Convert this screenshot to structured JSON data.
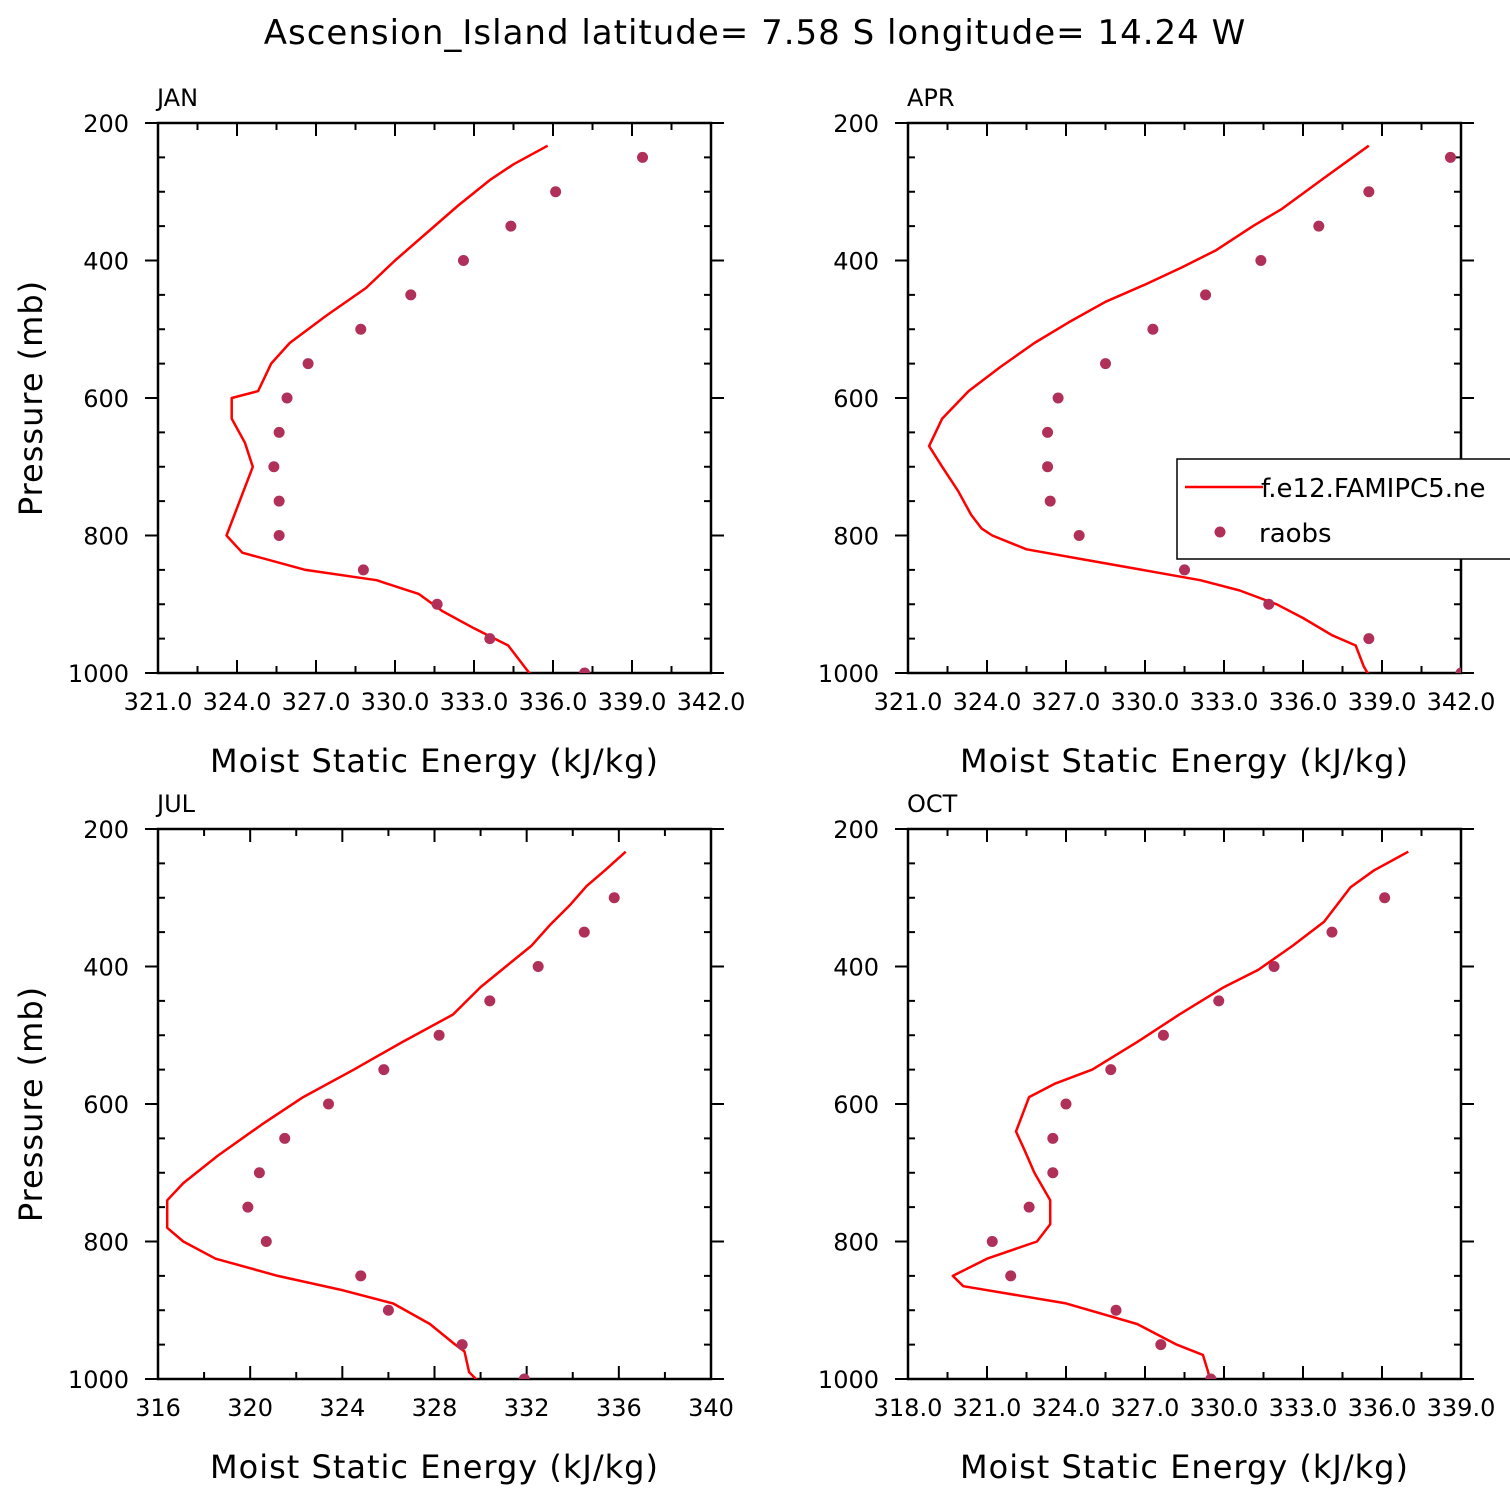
{
  "title": "Ascension_Island  latitude= 7.58 S longitude= 14.24 W",
  "colors": {
    "model": "#ff0000",
    "obs": "#b0305a"
  },
  "legend": {
    "model_label": "f.e12.FAMIPC5.ne",
    "obs_label": "raobs",
    "panel": "APR"
  },
  "chart_data": [
    {
      "type": "line",
      "panel": "JAN",
      "xlabel": "Moist Static Energy (kJ/kg)",
      "ylabel": "Pressure (mb)",
      "xlim": [
        321,
        342
      ],
      "xticks": [
        321,
        324,
        327,
        330,
        333,
        336,
        339,
        342
      ],
      "xtick_labels": [
        "321.0",
        "324.0",
        "327.0",
        "330.0",
        "333.0",
        "336.0",
        "339.0",
        "342.0"
      ],
      "ylim": [
        1000,
        200
      ],
      "yticks": [
        200,
        400,
        600,
        800,
        1000
      ],
      "ytick_labels": [
        "200",
        "400",
        "600",
        "800",
        "1000"
      ],
      "series": [
        {
          "name": "f.e12.FAMIPC5.ne",
          "kind": "line",
          "x": [
            335.8,
            334.5,
            333.6,
            332.4,
            331.2,
            330.0,
            328.9,
            327.4,
            326.0,
            325.3,
            324.8,
            323.8,
            323.8,
            324.3,
            324.6,
            323.6,
            324.2,
            326.6,
            329.3,
            330.9,
            331.8,
            333.0,
            334.3,
            334.9,
            335.1,
            335.4
          ],
          "y": [
            233,
            260,
            283,
            320,
            360,
            400,
            440,
            480,
            520,
            550,
            590,
            600,
            630,
            665,
            700,
            800,
            825,
            850,
            865,
            885,
            910,
            935,
            960,
            990,
            1000,
            1010
          ]
        },
        {
          "name": "raobs",
          "kind": "scatter",
          "x": [
            339.4,
            336.1,
            334.4,
            332.6,
            330.6,
            328.7,
            326.7,
            325.9,
            325.6,
            325.4,
            325.6,
            325.6,
            328.8,
            331.6,
            333.6,
            337.2
          ],
          "y": [
            250,
            300,
            350,
            400,
            450,
            500,
            550,
            600,
            650,
            700,
            750,
            800,
            850,
            900,
            950,
            1000
          ]
        }
      ]
    },
    {
      "type": "line",
      "panel": "APR",
      "xlabel": "Moist Static Energy (kJ/kg)",
      "ylabel": "",
      "xlim": [
        321,
        342
      ],
      "xticks": [
        321,
        324,
        327,
        330,
        333,
        336,
        339,
        342
      ],
      "xtick_labels": [
        "321.0",
        "324.0",
        "327.0",
        "330.0",
        "333.0",
        "336.0",
        "339.0",
        "342.0"
      ],
      "ylim": [
        1000,
        200
      ],
      "yticks": [
        200,
        400,
        600,
        800,
        1000
      ],
      "ytick_labels": [
        "200",
        "400",
        "600",
        "800",
        "1000"
      ],
      "series": [
        {
          "name": "f.e12.FAMIPC5.ne",
          "kind": "line",
          "x": [
            338.5,
            336.8,
            335.2,
            334.1,
            332.7,
            331.4,
            330.0,
            328.5,
            327.1,
            325.8,
            324.5,
            323.3,
            322.3,
            321.8,
            322.3,
            322.9,
            323.4,
            323.8,
            324.2,
            325.5,
            327.7,
            329.9,
            332.1,
            333.6,
            335.0,
            336.0,
            337.1,
            338.0,
            338.3,
            338.6
          ],
          "y": [
            233,
            280,
            325,
            350,
            385,
            410,
            435,
            460,
            490,
            520,
            555,
            590,
            630,
            670,
            700,
            735,
            770,
            790,
            800,
            820,
            835,
            850,
            865,
            880,
            900,
            920,
            945,
            960,
            990,
            1010
          ]
        },
        {
          "name": "raobs",
          "kind": "scatter",
          "x": [
            341.6,
            338.5,
            336.6,
            334.4,
            332.3,
            330.3,
            328.5,
            326.7,
            326.3,
            326.3,
            326.4,
            327.5,
            331.5,
            334.7,
            338.5,
            342.0
          ],
          "y": [
            250,
            300,
            350,
            400,
            450,
            500,
            550,
            600,
            650,
            700,
            750,
            800,
            850,
            900,
            950,
            1000
          ]
        }
      ]
    },
    {
      "type": "line",
      "panel": "JUL",
      "xlabel": "Moist Static Energy (kJ/kg)",
      "ylabel": "Pressure (mb)",
      "xlim": [
        316,
        340
      ],
      "xticks": [
        316,
        320,
        324,
        328,
        332,
        336,
        340
      ],
      "xtick_labels": [
        "316",
        "320",
        "324",
        "328",
        "332",
        "336",
        "340"
      ],
      "ylim": [
        1000,
        200
      ],
      "yticks": [
        200,
        400,
        600,
        800,
        1000
      ],
      "ytick_labels": [
        "200",
        "400",
        "600",
        "800",
        "1000"
      ],
      "series": [
        {
          "name": "f.e12.FAMIPC5.ne",
          "kind": "line",
          "x": [
            336.3,
            335.4,
            334.6,
            333.9,
            333.0,
            332.2,
            331.1,
            330.0,
            328.8,
            326.6,
            324.5,
            322.3,
            320.5,
            318.6,
            317.1,
            316.4,
            316.4,
            317.1,
            318.5,
            321.2,
            323.9,
            326.2,
            327.8,
            328.9,
            329.3,
            329.5,
            330.1
          ],
          "y": [
            233,
            260,
            283,
            310,
            340,
            370,
            400,
            430,
            470,
            510,
            550,
            590,
            630,
            675,
            715,
            740,
            780,
            800,
            825,
            850,
            870,
            890,
            920,
            950,
            960,
            990,
            1010
          ]
        },
        {
          "name": "raobs",
          "kind": "scatter",
          "x": [
            335.8,
            334.5,
            332.5,
            330.4,
            328.2,
            325.8,
            323.4,
            321.5,
            320.4,
            319.9,
            320.7,
            324.8,
            326.0,
            329.2,
            331.9
          ],
          "y": [
            300,
            350,
            400,
            450,
            500,
            550,
            600,
            650,
            700,
            750,
            800,
            850,
            900,
            950,
            1000
          ]
        }
      ]
    },
    {
      "type": "line",
      "panel": "OCT",
      "xlabel": "Moist Static Energy (kJ/kg)",
      "ylabel": "",
      "xlim": [
        318,
        339
      ],
      "xticks": [
        318,
        321,
        324,
        327,
        330,
        333,
        336,
        339
      ],
      "xtick_labels": [
        "318.0",
        "321.0",
        "324.0",
        "327.0",
        "330.0",
        "333.0",
        "336.0",
        "339.0"
      ],
      "ylim": [
        1000,
        200
      ],
      "yticks": [
        200,
        400,
        600,
        800,
        1000
      ],
      "ytick_labels": [
        "200",
        "400",
        "600",
        "800",
        "1000"
      ],
      "series": [
        {
          "name": "f.e12.FAMIPC5.ne",
          "kind": "line",
          "x": [
            337.0,
            335.7,
            334.8,
            333.8,
            332.6,
            331.3,
            330.0,
            328.3,
            326.7,
            325.0,
            323.6,
            322.6,
            322.1,
            322.4,
            322.8,
            323.4,
            323.4,
            322.9,
            321.0,
            319.7,
            320.1,
            324.0,
            326.7,
            328.2,
            329.2,
            329.4,
            329.5
          ],
          "y": [
            233,
            260,
            285,
            335,
            370,
            405,
            430,
            470,
            510,
            550,
            570,
            590,
            640,
            665,
            700,
            740,
            775,
            800,
            825,
            850,
            865,
            890,
            920,
            950,
            965,
            990,
            1010
          ]
        },
        {
          "name": "raobs",
          "kind": "scatter",
          "x": [
            336.1,
            334.1,
            331.9,
            329.8,
            327.7,
            325.7,
            324.0,
            323.5,
            323.5,
            322.6,
            321.2,
            321.9,
            325.9,
            327.6,
            329.5
          ],
          "y": [
            300,
            350,
            400,
            450,
            500,
            550,
            600,
            650,
            700,
            750,
            800,
            850,
            900,
            950,
            1000
          ]
        }
      ]
    }
  ]
}
